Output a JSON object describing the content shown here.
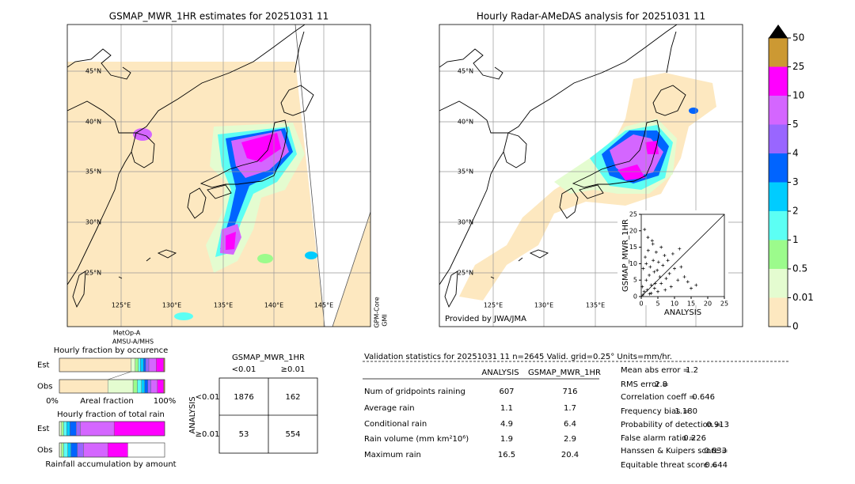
{
  "maps": [
    {
      "title": "GSMAP_MWR_1HR estimates for 20251031 11",
      "lat_labels": [
        "45°N",
        "40°N",
        "35°N",
        "30°N",
        "25°N"
      ],
      "lon_labels": [
        "125°E",
        "130°E",
        "135°E",
        "140°E",
        "145°E"
      ],
      "sensors": [
        "MetOp-A",
        "AMSU-A/MHS",
        "GPM-Core",
        "GMI"
      ]
    },
    {
      "title": "Hourly Radar-AMeDAS analysis for 20251031 11",
      "lat_labels": [
        "45°N",
        "40°N",
        "35°N",
        "30°N",
        "25°N"
      ],
      "lon_labels": [
        "125°E",
        "130°E",
        "135°E"
      ],
      "credit": "Provided by JWA/JMA"
    }
  ],
  "scatter": {
    "type": "scatter",
    "xlabel": "ANALYSIS",
    "ylabel": "GSMAP_MWR_1HR",
    "xlim": [
      0,
      25
    ],
    "ylim": [
      0,
      25
    ],
    "xticks": [
      0,
      5,
      10,
      15,
      20,
      25
    ],
    "yticks": [
      0,
      5,
      10,
      15,
      20,
      25
    ],
    "x": [
      0.3,
      0.6,
      0.9,
      1.2,
      1.5,
      1.8,
      2.1,
      2.4,
      2.7,
      3.0,
      3.3,
      3.6,
      3.9,
      4.2,
      4.5,
      4.8,
      5.2,
      5.6,
      6.0,
      6.5,
      7.0,
      7.5,
      8.0,
      8.5,
      9.0,
      10.0,
      11.0,
      12.0,
      13.0,
      14.0,
      15.0,
      16.5,
      1.0,
      2.0,
      3.0,
      4.0,
      5.0,
      6.0,
      0.5,
      1.5,
      2.5,
      3.5,
      7.2,
      9.5,
      11.5
    ],
    "y": [
      3.0,
      8.5,
      1.5,
      12.0,
      5.0,
      2.0,
      14.0,
      6.5,
      9.0,
      3.5,
      17.0,
      11.0,
      7.5,
      4.0,
      13.5,
      8.0,
      10.5,
      6.0,
      15.0,
      9.5,
      12.5,
      5.5,
      11.0,
      7.0,
      3.0,
      8.5,
      5.0,
      9.0,
      6.0,
      4.5,
      2.5,
      3.5,
      20.4,
      18.0,
      1.0,
      2.5,
      1.5,
      4.0,
      0.5,
      10.0,
      0.8,
      16.0,
      2.0,
      13.0,
      14.5
    ],
    "color": "#000000"
  },
  "colorbar": {
    "ticks": [
      0,
      0.01,
      0.5,
      1,
      2,
      3,
      4,
      5,
      10,
      25,
      50
    ],
    "colors": [
      "#fde8c0",
      "#e4fcd0",
      "#9cfb8c",
      "#5cfff4",
      "#00ccff",
      "#0064ff",
      "#9966ff",
      "#d466ff",
      "#ff00ff",
      "#cc9933"
    ],
    "over_color": "#000000"
  },
  "fractions": {
    "occurrence": {
      "title": "Hourly fraction by occurence",
      "rows": [
        {
          "label": "Est",
          "values": [
            68,
            4,
            3,
            2,
            3,
            2,
            3,
            7,
            7,
            1
          ]
        },
        {
          "label": "Obs",
          "values": [
            46,
            24,
            4,
            4,
            3,
            3,
            3,
            6,
            6,
            1
          ]
        }
      ],
      "xlabel_left": "0%",
      "xlabel": "Areal fraction",
      "xlabel_right": "100%"
    },
    "total_rain": {
      "title": "Hourly fraction of total rain",
      "rows": [
        {
          "label": "Est",
          "values": [
            0,
            2,
            2,
            3,
            3,
            6,
            4,
            32,
            48,
            0
          ]
        },
        {
          "label": "Obs",
          "values": [
            0,
            2,
            2,
            4,
            3,
            6,
            6,
            23,
            19,
            0
          ]
        }
      ],
      "xlabel": "Rainfall accumulation by amount"
    }
  },
  "contingency": {
    "title": "GSMAP_MWR_1HR",
    "col_labels": [
      "<0.01",
      "≥0.01"
    ],
    "row_title": "ANALYSIS",
    "row_labels": [
      "<0.01",
      "≥0.01"
    ],
    "cells": [
      [
        1876,
        162
      ],
      [
        53,
        554
      ]
    ]
  },
  "validation": {
    "header": "Validation statistics for 20251031 11  n=2645 Valid. grid=0.25° Units=mm/hr.",
    "columns": [
      "ANALYSIS",
      "GSMAP_MWR_1HR"
    ],
    "rows": [
      {
        "label": "Num of gridpoints raining",
        "values": [
          "607",
          "716"
        ]
      },
      {
        "label": "Average rain",
        "values": [
          "1.1",
          "1.7"
        ]
      },
      {
        "label": "Conditional rain",
        "values": [
          "4.9",
          "6.4"
        ]
      },
      {
        "label": "Rain volume (mm km²10⁶)",
        "values": [
          "1.9",
          "2.9"
        ]
      },
      {
        "label": "Maximum rain",
        "values": [
          "16.5",
          "20.4"
        ]
      }
    ],
    "stats": [
      {
        "label": "Mean abs error =",
        "value": "1.2"
      },
      {
        "label": "RMS error =",
        "value": "2.8"
      },
      {
        "label": "Correlation coeff =",
        "value": "0.646"
      },
      {
        "label": "Frequency bias =",
        "value": "1.180"
      },
      {
        "label": "Probability of detection =",
        "value": "0.913"
      },
      {
        "label": "False alarm ratio =",
        "value": "0.226"
      },
      {
        "label": "Hanssen & Kuipers score =",
        "value": "0.833"
      },
      {
        "label": "Equitable threat score =",
        "value": "0.644"
      }
    ]
  }
}
